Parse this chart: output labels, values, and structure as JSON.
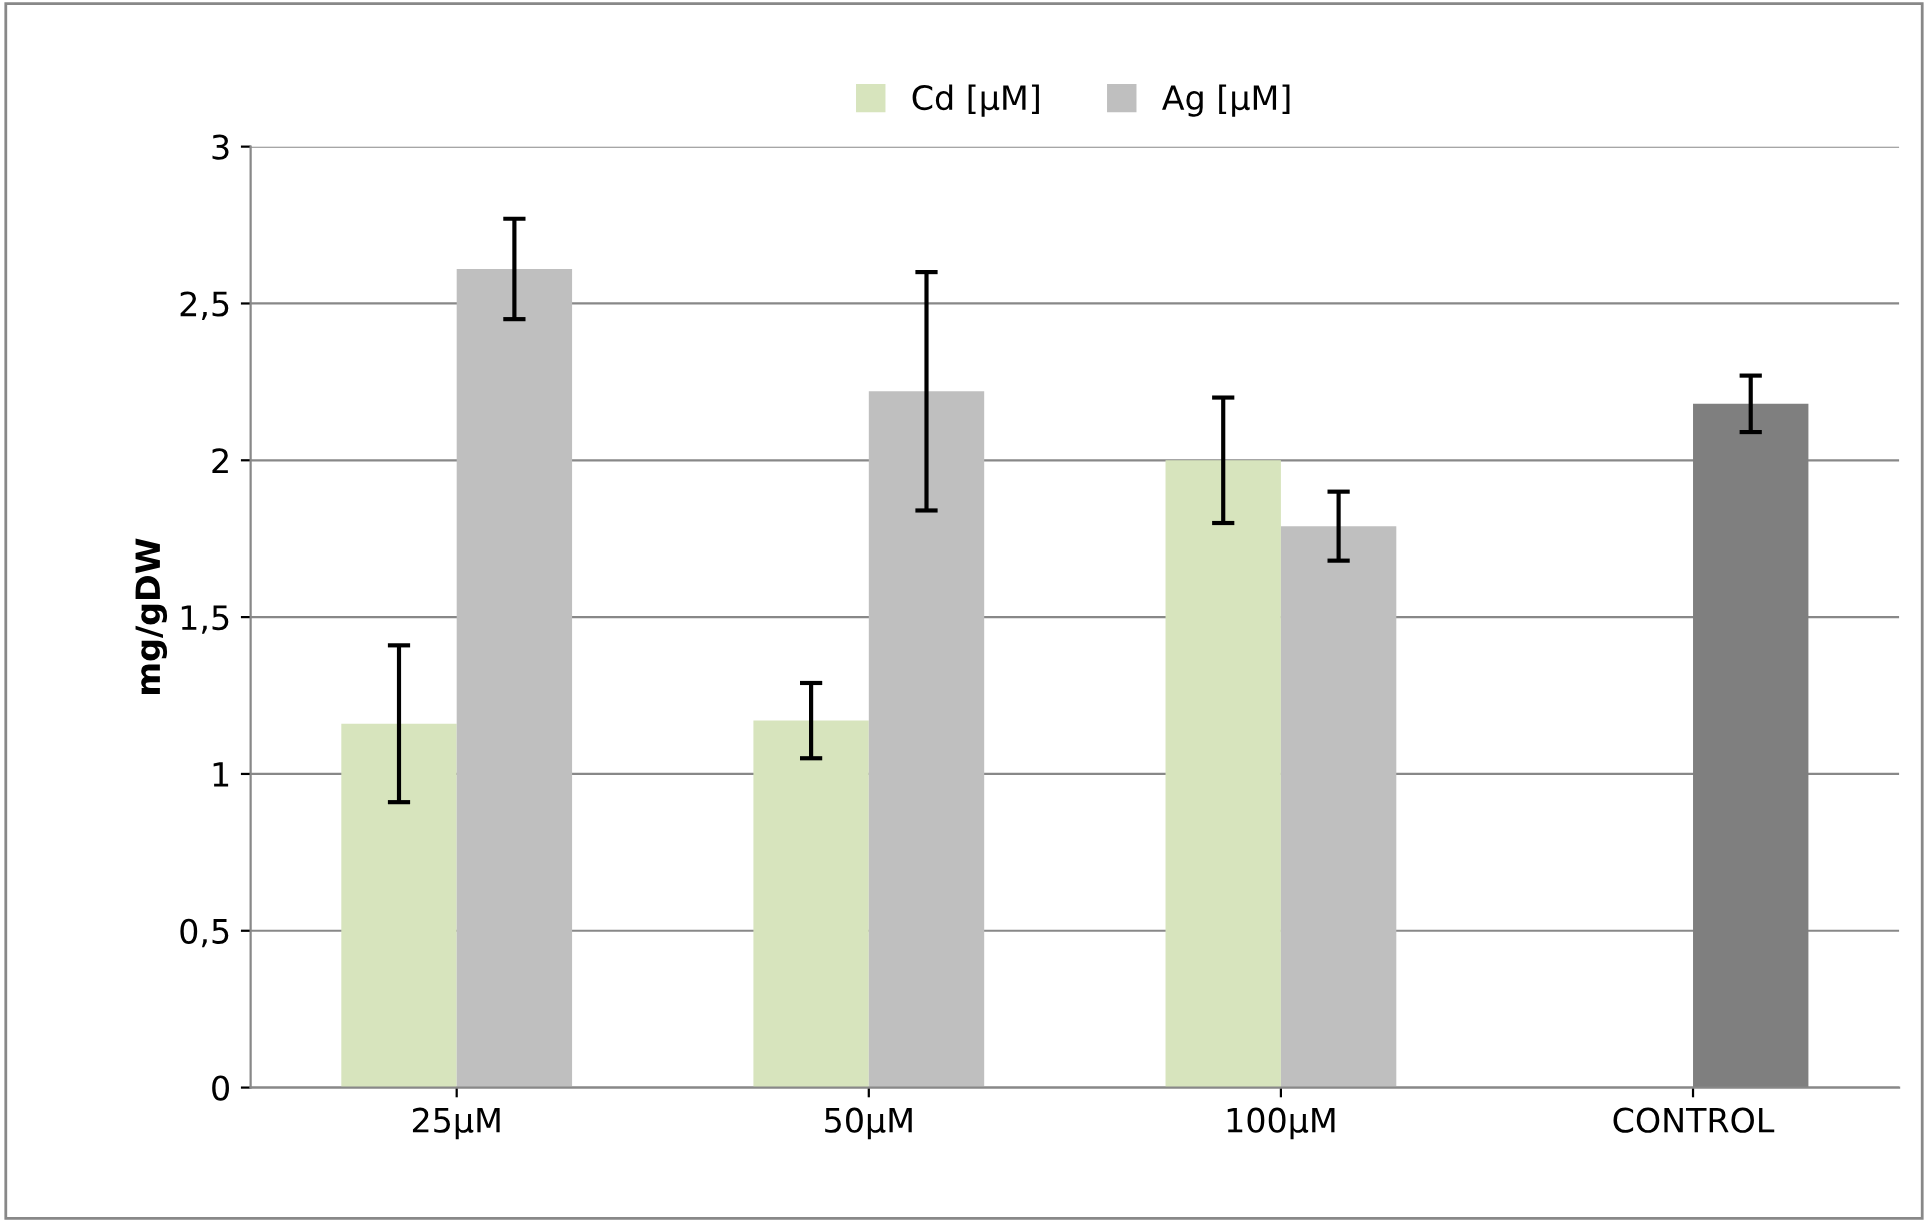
{
  "chart_data": {
    "type": "bar",
    "ylabel": "mg/gDW",
    "categories": [
      "25µM",
      "50µM",
      "100µM",
      "CONTROL"
    ],
    "series": [
      {
        "name": "Cd [µM]",
        "color": "#d7e4bd",
        "values": [
          1.16,
          1.17,
          2.0,
          null
        ],
        "errors": [
          0.25,
          0.12,
          0.2,
          null
        ]
      },
      {
        "name": "Ag [µM]",
        "color": "#bfbfbf",
        "colors": [
          "#bfbfbf",
          "#bfbfbf",
          "#bfbfbf",
          "#7f7f7f"
        ],
        "values": [
          2.61,
          2.22,
          1.79,
          2.18
        ],
        "errors": [
          0.16,
          0.38,
          0.11,
          0.09
        ]
      }
    ],
    "ylim": [
      0,
      3
    ],
    "yticks": [
      0,
      {
        "value": 0.5,
        "label": "0,5"
      },
      1,
      {
        "value": 1.5,
        "label": "1,5"
      },
      2,
      {
        "value": 2.5,
        "label": "2,5"
      },
      3
    ],
    "grid": "y",
    "legend": "top"
  }
}
